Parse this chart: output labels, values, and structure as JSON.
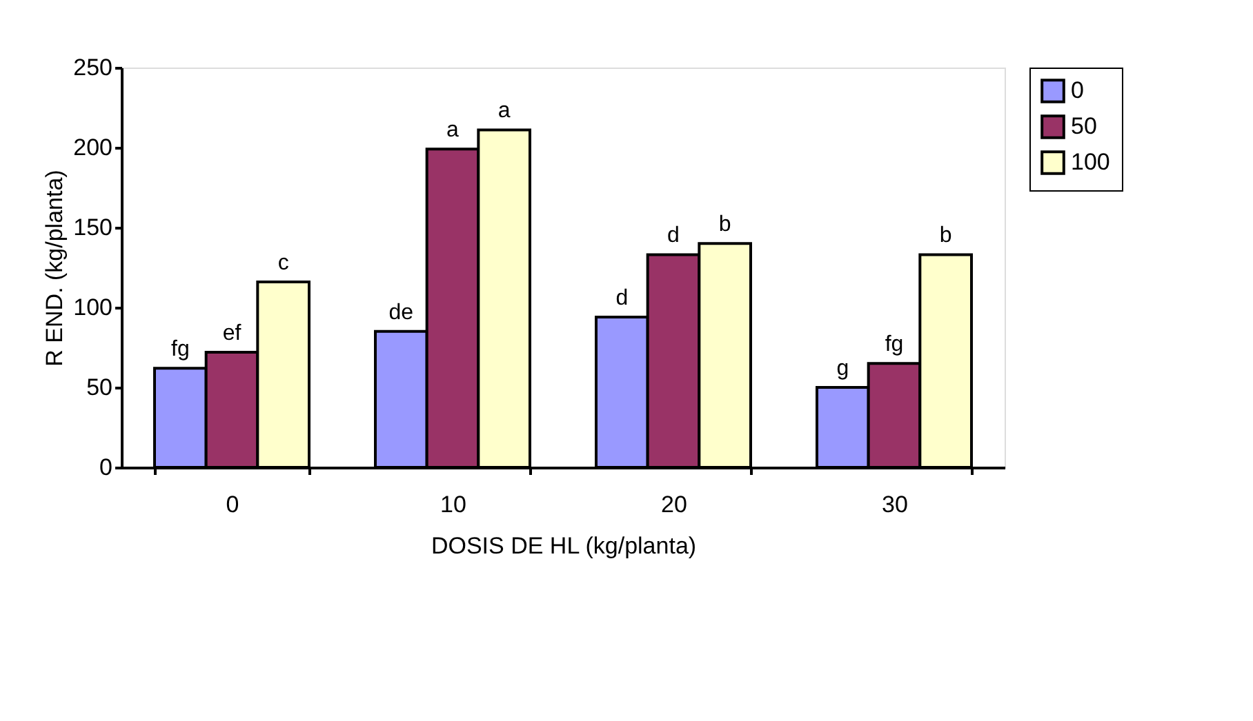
{
  "chart_data": {
    "type": "bar",
    "xlabel": "DOSIS DE  HL (kg/planta)",
    "ylabel": "R END. (kg/planta)",
    "categories": [
      "0",
      "10",
      "20",
      "30"
    ],
    "series": [
      {
        "name": "0",
        "color": "#9999ff",
        "values": [
          62,
          85,
          94,
          50
        ],
        "value_labels": [
          "fg",
          "de",
          "d",
          "g"
        ]
      },
      {
        "name": "50",
        "color": "#993366",
        "values": [
          72,
          199,
          133,
          65
        ],
        "value_labels": [
          "ef",
          "a",
          "d",
          "fg"
        ]
      },
      {
        "name": "100",
        "color": "#ffffcc",
        "values": [
          116,
          211,
          140,
          133
        ],
        "value_labels": [
          "c",
          "a",
          "b",
          "b"
        ]
      }
    ],
    "ylim": [
      0,
      250
    ],
    "yticks": [
      0,
      50,
      100,
      150,
      200,
      250
    ],
    "grid": false,
    "legend": "right"
  }
}
